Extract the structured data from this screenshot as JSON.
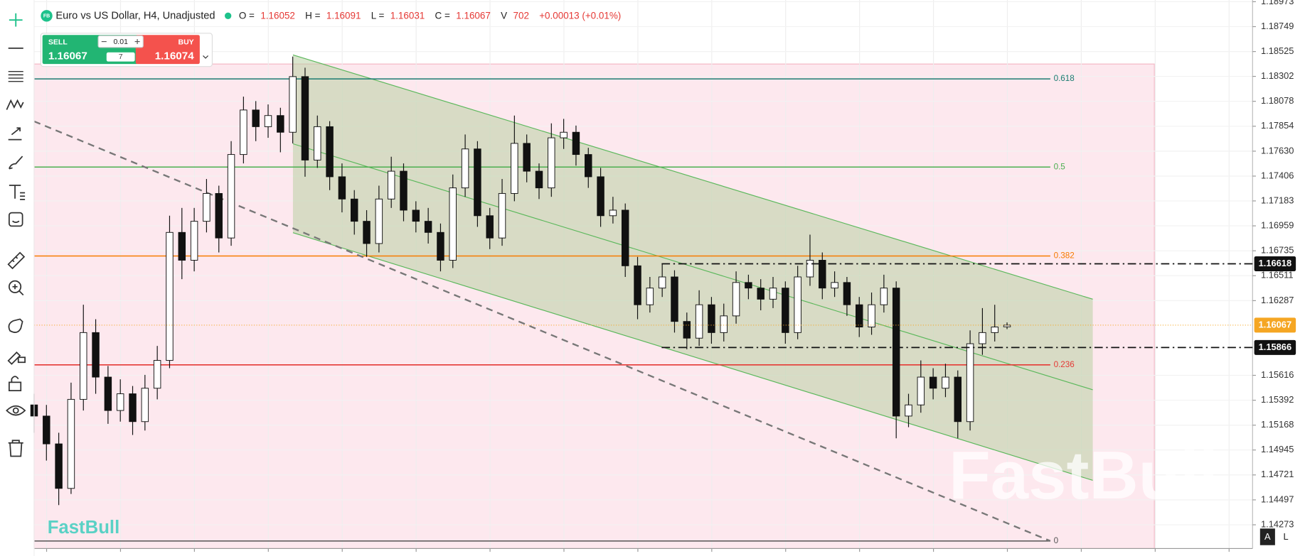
{
  "header": {
    "symbol_badge": "FB",
    "title": "Euro vs US Dollar, H4, Unadjusted",
    "ohlc_labels": [
      "O =",
      "H =",
      "L =",
      "C =",
      "V"
    ],
    "volume": 702,
    "change": "+0.00013 (+0.01%)"
  },
  "trade": {
    "sell_label": "SELL",
    "sell_price": "1.16067",
    "buy_label": "BUY",
    "buy_price": "1.16074",
    "lot": "0.01",
    "spread": "7"
  },
  "chart_data": {
    "type": "candlestick",
    "candles": [
      [
        1.1535,
        1.1545,
        1.151,
        1.1525
      ],
      [
        1.1525,
        1.1535,
        1.1485,
        1.15
      ],
      [
        1.15,
        1.151,
        1.1445,
        1.146
      ],
      [
        1.146,
        1.1555,
        1.1455,
        1.154
      ],
      [
        1.154,
        1.1625,
        1.153,
        1.16
      ],
      [
        1.16,
        1.1612,
        1.1545,
        1.156
      ],
      [
        1.156,
        1.157,
        1.1518,
        1.153
      ],
      [
        1.153,
        1.1558,
        1.152,
        1.1545
      ],
      [
        1.1545,
        1.1552,
        1.1508,
        1.152
      ],
      [
        1.152,
        1.1562,
        1.1512,
        1.155
      ],
      [
        1.155,
        1.1588,
        1.154,
        1.1575
      ],
      [
        1.1575,
        1.1705,
        1.1568,
        1.169
      ],
      [
        1.169,
        1.1712,
        1.1648,
        1.1665
      ],
      [
        1.1665,
        1.1712,
        1.1655,
        1.17
      ],
      [
        1.17,
        1.1738,
        1.169,
        1.1725
      ],
      [
        1.1725,
        1.1732,
        1.1672,
        1.1685
      ],
      [
        1.1685,
        1.1772,
        1.1678,
        1.176
      ],
      [
        1.176,
        1.1812,
        1.1752,
        1.18
      ],
      [
        1.18,
        1.1808,
        1.1772,
        1.1785
      ],
      [
        1.1785,
        1.1805,
        1.1775,
        1.1795
      ],
      [
        1.1795,
        1.1802,
        1.1762,
        1.178
      ],
      [
        1.178,
        1.1848,
        1.177,
        1.183
      ],
      [
        1.183,
        1.1838,
        1.174,
        1.1755
      ],
      [
        1.1755,
        1.1795,
        1.1748,
        1.1785
      ],
      [
        1.1785,
        1.179,
        1.1728,
        1.174
      ],
      [
        1.174,
        1.1752,
        1.1708,
        1.172
      ],
      [
        1.172,
        1.1728,
        1.1688,
        1.17
      ],
      [
        1.17,
        1.171,
        1.1668,
        1.168
      ],
      [
        1.168,
        1.1732,
        1.1672,
        1.172
      ],
      [
        1.172,
        1.1758,
        1.1712,
        1.1745
      ],
      [
        1.1745,
        1.1752,
        1.17,
        1.171
      ],
      [
        1.171,
        1.1718,
        1.169,
        1.17
      ],
      [
        1.17,
        1.1712,
        1.168,
        1.169
      ],
      [
        1.169,
        1.1698,
        1.1655,
        1.1665
      ],
      [
        1.1665,
        1.1742,
        1.1658,
        1.173
      ],
      [
        1.173,
        1.1778,
        1.1722,
        1.1765
      ],
      [
        1.1765,
        1.1772,
        1.1695,
        1.1705
      ],
      [
        1.1705,
        1.1712,
        1.1675,
        1.1685
      ],
      [
        1.1685,
        1.1738,
        1.1678,
        1.1725
      ],
      [
        1.1725,
        1.1795,
        1.1718,
        1.177
      ],
      [
        1.177,
        1.1778,
        1.1735,
        1.1745
      ],
      [
        1.1745,
        1.1752,
        1.172,
        1.173
      ],
      [
        1.173,
        1.1788,
        1.1722,
        1.1775
      ],
      [
        1.1775,
        1.1792,
        1.1765,
        1.178
      ],
      [
        1.178,
        1.1786,
        1.175,
        1.176
      ],
      [
        1.176,
        1.1766,
        1.173,
        1.174
      ],
      [
        1.174,
        1.1748,
        1.1695,
        1.1705
      ],
      [
        1.1705,
        1.1722,
        1.1698,
        1.171
      ],
      [
        1.171,
        1.1716,
        1.165,
        1.166
      ],
      [
        1.166,
        1.1668,
        1.1612,
        1.1625
      ],
      [
        1.1625,
        1.165,
        1.1618,
        1.164
      ],
      [
        1.164,
        1.1662,
        1.1632,
        1.165
      ],
      [
        1.165,
        1.1656,
        1.16,
        1.161
      ],
      [
        1.161,
        1.1618,
        1.1585,
        1.1595
      ],
      [
        1.1595,
        1.1638,
        1.1588,
        1.1625
      ],
      [
        1.1625,
        1.1632,
        1.159,
        1.16
      ],
      [
        1.16,
        1.1626,
        1.1592,
        1.1615
      ],
      [
        1.1615,
        1.1655,
        1.1608,
        1.1645
      ],
      [
        1.1645,
        1.1652,
        1.163,
        1.164
      ],
      [
        1.164,
        1.1648,
        1.162,
        1.163
      ],
      [
        1.163,
        1.165,
        1.1622,
        1.164
      ],
      [
        1.164,
        1.1646,
        1.159,
        1.16
      ],
      [
        1.16,
        1.166,
        1.1594,
        1.165
      ],
      [
        1.165,
        1.1688,
        1.1642,
        1.1665
      ],
      [
        1.1665,
        1.1672,
        1.163,
        1.164
      ],
      [
        1.164,
        1.1655,
        1.1632,
        1.1645
      ],
      [
        1.1645,
        1.165,
        1.1615,
        1.1625
      ],
      [
        1.1625,
        1.1632,
        1.1596,
        1.1605
      ],
      [
        1.1605,
        1.1636,
        1.1598,
        1.1625
      ],
      [
        1.1625,
        1.1652,
        1.1618,
        1.164
      ],
      [
        1.164,
        1.1646,
        1.1505,
        1.1525
      ],
      [
        1.1525,
        1.1545,
        1.1515,
        1.1535
      ],
      [
        1.1535,
        1.1575,
        1.1528,
        1.156
      ],
      [
        1.156,
        1.1568,
        1.154,
        1.155
      ],
      [
        1.155,
        1.1572,
        1.1542,
        1.156
      ],
      [
        1.156,
        1.1566,
        1.1505,
        1.152
      ],
      [
        1.152,
        1.1602,
        1.1512,
        1.159
      ],
      [
        1.159,
        1.1622,
        1.158,
        1.16
      ],
      [
        1.16,
        1.1625,
        1.1592,
        1.1605
      ],
      [
        1.16052,
        1.16091,
        1.16031,
        1.16067
      ]
    ],
    "up_color": "#ffffff",
    "down_color": "#111111",
    "ylim": [
      1.1406,
      1.18988
    ],
    "yticks": [
      1.18973,
      1.18749,
      1.18525,
      1.18302,
      1.18078,
      1.17854,
      {
        "value": 1.1763,
        "label": "1.17630"
      },
      1.17406,
      1.17183,
      1.16959,
      1.16735,
      1.16511,
      1.16287,
      1.15616,
      1.15392,
      1.15168,
      1.14945,
      1.14721,
      1.14497,
      1.14273
    ],
    "grid": true,
    "fib_levels": [
      {
        "level": 0.618,
        "price": 1.18279,
        "color": "#1b7c72"
      },
      {
        "level": 0.5,
        "price": 1.17487,
        "color": "#4caf50"
      },
      {
        "level": 0.382,
        "price": 1.16688,
        "color": "#f57c00"
      },
      {
        "level": 0.236,
        "price": 1.1571,
        "color": "#e53935"
      },
      {
        "level": 0,
        "price": 1.14127,
        "color": "#555555"
      }
    ],
    "price_lines": [
      1.16618,
      1.15866
    ],
    "last_price_color": "#f5a623"
  },
  "toolbar_buttons": [
    "A",
    "L"
  ],
  "watermark": "FastBull"
}
